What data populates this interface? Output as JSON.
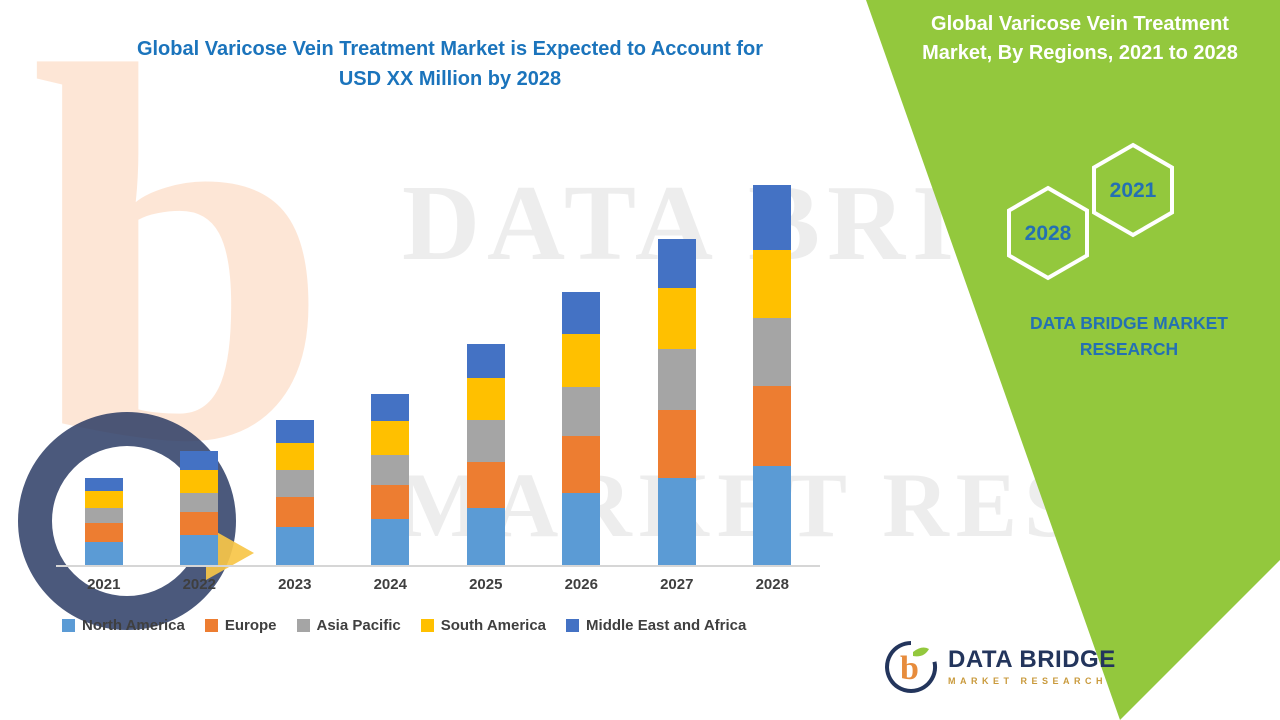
{
  "header": {
    "title_line1": "Global Varicose Vein Treatment Market is Expected to Account for",
    "title_line2": "USD XX Million by 2028"
  },
  "side_panel": {
    "heading": "Global Varicose Vein Treatment Market, By Regions, 2021 to 2028",
    "hexagons": [
      {
        "label": "2028"
      },
      {
        "label": "2021"
      }
    ],
    "brand_text": "DATA BRIDGE MARKET RESEARCH",
    "background_color": "#93C83D",
    "accent_text_color": "#2470B3"
  },
  "watermark": {
    "line1": "DATA BRIDGE",
    "line2": "MARKET RESEARCH",
    "logo_letter": "b"
  },
  "footer_logo": {
    "brand": "DATA BRIDGE",
    "tagline": "MARKET RESEARCH",
    "icon_letter": "b"
  },
  "chart_data": {
    "type": "bar",
    "stacked": true,
    "title": "Global Varicose Vein Treatment Market is Expected to Account for USD XX Million by 2028",
    "xlabel": "",
    "ylabel": "",
    "y_axis_visible": false,
    "grid": false,
    "legend_position": "bottom",
    "ylim": [
      0,
      100
    ],
    "categories": [
      "2021",
      "2022",
      "2023",
      "2024",
      "2025",
      "2026",
      "2027",
      "2028"
    ],
    "series": [
      {
        "name": "North America",
        "color": "#5B9BD5",
        "values": [
          6,
          8,
          10,
          12,
          15,
          19,
          23,
          26
        ]
      },
      {
        "name": "Europe",
        "color": "#ED7D31",
        "values": [
          5,
          6,
          8,
          9,
          12,
          15,
          18,
          21
        ]
      },
      {
        "name": "Asia Pacific",
        "color": "#A5A5A5",
        "values": [
          4,
          5,
          7,
          8,
          11,
          13,
          16,
          18
        ]
      },
      {
        "name": "South America",
        "color": "#FFC000",
        "values": [
          4.5,
          6,
          7,
          9,
          11,
          14,
          16,
          18
        ]
      },
      {
        "name": "Middle East and Africa",
        "color": "#4472C4",
        "values": [
          3.5,
          5,
          6,
          7,
          9,
          11,
          13,
          17
        ]
      }
    ],
    "totals_relative": [
      23,
      30,
      38,
      45,
      58,
      72,
      86,
      100
    ]
  }
}
